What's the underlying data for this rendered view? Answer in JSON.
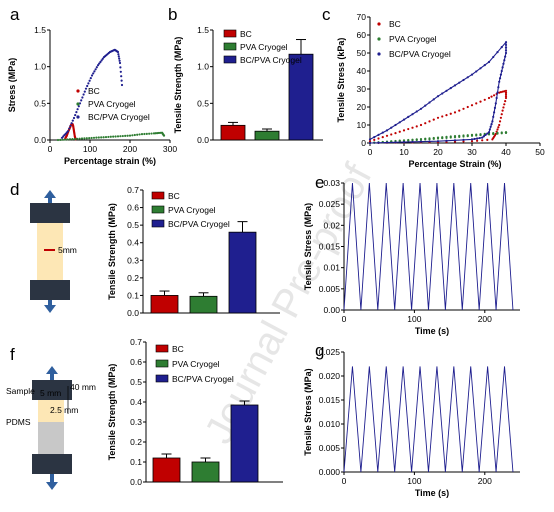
{
  "watermark": "Journal Pre-proof",
  "colors": {
    "BC": "#c00000",
    "PVA": "#2e7d32",
    "BCPVA": "#1f1f8f"
  },
  "chart_data": [
    {
      "panel": "a",
      "type": "scatter",
      "xlabel": "Percentage strain (%)",
      "ylabel": "Stress (MPa)",
      "xlim": [
        0,
        300
      ],
      "ylim": [
        0,
        1.5
      ],
      "xticks": [
        "0",
        "100",
        "200",
        "300"
      ],
      "yticks": [
        "0.0",
        "0.5",
        "1.0",
        "1.5"
      ],
      "legend": [
        "BC",
        "PVA Cryogel",
        "BC/PVA Cryogel"
      ],
      "series": [
        {
          "name": "BC",
          "x": [
            38,
            42,
            46,
            50,
            53,
            56,
            58,
            60,
            62,
            64
          ],
          "y": [
            0.02,
            0.06,
            0.12,
            0.17,
            0.21,
            0.22,
            0.19,
            0.12,
            0.05,
            0.01
          ]
        },
        {
          "name": "PVA Cryogel",
          "x": [
            20,
            50,
            80,
            110,
            140,
            170,
            200,
            230,
            260,
            280,
            285
          ],
          "y": [
            0.0,
            0.01,
            0.02,
            0.03,
            0.04,
            0.05,
            0.06,
            0.08,
            0.09,
            0.1,
            0.06
          ]
        },
        {
          "name": "BC/PVA Cryogel",
          "x": [
            30,
            45,
            60,
            75,
            90,
            105,
            120,
            135,
            150,
            162,
            170,
            175,
            180
          ],
          "y": [
            0.03,
            0.12,
            0.3,
            0.5,
            0.7,
            0.88,
            1.02,
            1.13,
            1.2,
            1.23,
            1.2,
            1.05,
            0.75
          ]
        }
      ]
    },
    {
      "panel": "b",
      "type": "bar",
      "ylabel": "Tensile Strength (MPa)",
      "ylim": [
        0,
        1.5
      ],
      "yticks": [
        "0.0",
        "0.5",
        "1.0",
        "1.5"
      ],
      "categories": [
        "BC",
        "PVA Cryogel",
        "BC/PVA Cryogel"
      ],
      "values": [
        0.2,
        0.12,
        1.17
      ],
      "errors": [
        0.04,
        0.03,
        0.2
      ]
    },
    {
      "panel": "c",
      "type": "scatter",
      "xlabel": "Percentage Strain (%)",
      "ylabel": "Tensile Stress (kPa)",
      "xlim": [
        0,
        50
      ],
      "ylim": [
        0,
        70
      ],
      "xticks": [
        "0",
        "10",
        "20",
        "30",
        "40",
        "50"
      ],
      "yticks": [
        "0",
        "10",
        "20",
        "30",
        "40",
        "50",
        "60",
        "70"
      ],
      "legend": [
        "BC",
        "PVA Cryogel",
        "BC/PVA Cryogel"
      ],
      "series": [
        {
          "name": "BC",
          "x": [
            0,
            5,
            10,
            15,
            20,
            25,
            30,
            35,
            38,
            40,
            40,
            39,
            38,
            37,
            36,
            30,
            20,
            10,
            0
          ],
          "y": [
            1,
            4,
            7,
            10,
            14,
            17,
            21,
            25,
            28,
            29,
            25,
            18,
            10,
            5,
            2,
            1,
            0.5,
            0.3,
            0
          ]
        },
        {
          "name": "PVA Cryogel",
          "x": [
            0,
            5,
            10,
            15,
            20,
            25,
            30,
            35,
            40,
            40,
            35,
            30,
            25,
            20,
            15,
            10,
            5,
            0
          ],
          "y": [
            0,
            0.8,
            1.5,
            2.2,
            3,
            3.8,
            4.5,
            5.3,
            6,
            5.6,
            4.8,
            4,
            3.2,
            2.5,
            1.8,
            1.2,
            0.6,
            0
          ]
        },
        {
          "name": "BC/PVA Cryogel",
          "x": [
            0,
            5,
            10,
            15,
            20,
            25,
            30,
            35,
            40,
            40,
            39,
            38,
            37,
            36,
            35,
            33,
            30,
            20,
            10,
            0
          ],
          "y": [
            2,
            7,
            13,
            19,
            26,
            32,
            38,
            45,
            56,
            50,
            42,
            34,
            22,
            12,
            6,
            3,
            2,
            1,
            0.5,
            0
          ]
        }
      ]
    },
    {
      "panel": "d",
      "type": "bar",
      "ylabel": "Tensile Strength (MPa)",
      "ylim": [
        0,
        0.7
      ],
      "yticks": [
        "0.0",
        "0.1",
        "0.2",
        "0.3",
        "0.4",
        "0.5",
        "0.6",
        "0.7"
      ],
      "categories": [
        "BC",
        "PVA Cryogel",
        "BC/PVA Cryogel"
      ],
      "values": [
        0.1,
        0.095,
        0.46
      ],
      "errors": [
        0.025,
        0.02,
        0.06
      ],
      "schematic_label": "5mm"
    },
    {
      "panel": "e",
      "type": "line",
      "xlabel": "Time (s)",
      "ylabel": "Tensile Stress (MPa)",
      "xlim": [
        0,
        250
      ],
      "ylim": [
        0,
        0.03
      ],
      "xticks": [
        "0",
        "100",
        "200"
      ],
      "yticks": [
        "0.00",
        "0.005",
        "0.01",
        "0.015",
        "0.02",
        "0.025",
        "0.03"
      ],
      "x": [
        0,
        12,
        24,
        36,
        48,
        60,
        72,
        84,
        96,
        108,
        120,
        132,
        144,
        156,
        168,
        180,
        192,
        204,
        216,
        228,
        240
      ],
      "y": [
        0,
        0.03,
        0,
        0.03,
        0,
        0.03,
        0,
        0.03,
        0,
        0.03,
        0,
        0.03,
        0,
        0.03,
        0,
        0.03,
        0,
        0.03,
        0,
        0.03,
        0
      ]
    },
    {
      "panel": "f",
      "type": "bar",
      "ylabel": "Tensile Strength (MPa)",
      "ylim": [
        0,
        0.7
      ],
      "yticks": [
        "0.0",
        "0.1",
        "0.2",
        "0.3",
        "0.4",
        "0.5",
        "0.6",
        "0.7"
      ],
      "categories": [
        "BC",
        "PVA Cryogel",
        "BC/PVA Cryogel"
      ],
      "values": [
        0.12,
        0.1,
        0.385
      ],
      "errors": [
        0.02,
        0.02,
        0.02
      ],
      "schematic_labels": {
        "sample": "Sample",
        "pdms": "PDMS",
        "len40": "40 mm",
        "len5": "5 mm",
        "len25": "2.5 mm"
      }
    },
    {
      "panel": "g",
      "type": "line",
      "xlabel": "Time (s)",
      "ylabel": "Tensile Stress (MPa)",
      "xlim": [
        0,
        250
      ],
      "ylim": [
        0,
        0.025
      ],
      "xticks": [
        "0",
        "100",
        "200"
      ],
      "yticks": [
        "0.000",
        "0.005",
        "0.010",
        "0.015",
        "0.020",
        "0.025"
      ],
      "x": [
        0,
        12,
        24,
        36,
        48,
        60,
        72,
        84,
        96,
        108,
        120,
        132,
        144,
        156,
        168,
        180,
        192,
        204,
        216,
        228,
        240
      ],
      "y": [
        0,
        0.022,
        0,
        0.022,
        0,
        0.022,
        0,
        0.022,
        0,
        0.022,
        0,
        0.022,
        0,
        0.022,
        0,
        0.022,
        0,
        0.022,
        0,
        0.022,
        0
      ]
    }
  ]
}
